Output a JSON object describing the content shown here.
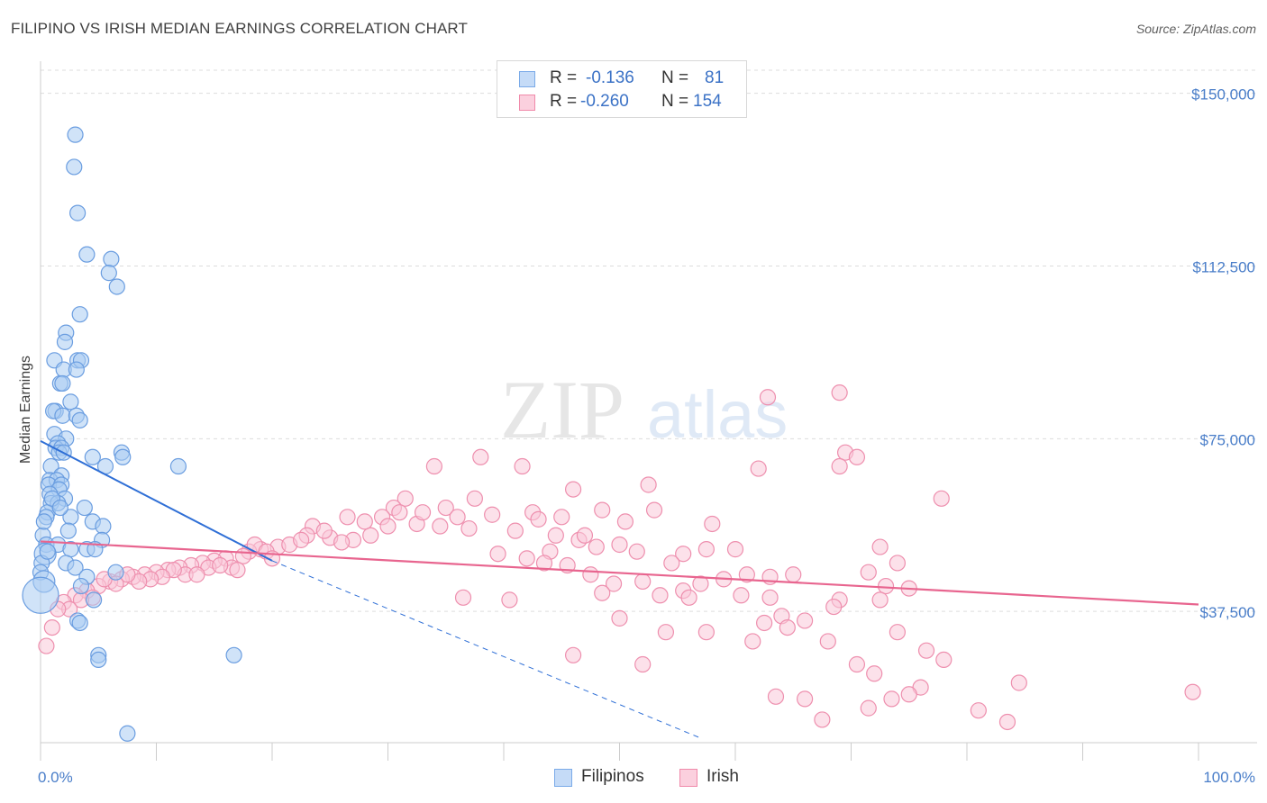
{
  "title": "FILIPINO VS IRISH MEDIAN EARNINGS CORRELATION CHART",
  "source": "Source: ZipAtlas.com",
  "watermark": {
    "zip": "ZIP",
    "atlas": "atlas"
  },
  "legend": {
    "rows": [
      {
        "r_label": "R =",
        "r_value": "-0.136",
        "n_label": "N =",
        "n_value": "81",
        "color": "#7aaae8",
        "fill": "#c5dbf7"
      },
      {
        "r_label": "R =",
        "r_value": "-0.260",
        "n_label": "N =",
        "n_value": "154",
        "color": "#f08aaa",
        "fill": "#fbd0de"
      }
    ],
    "series_names": [
      "Filipinos",
      "Irish"
    ]
  },
  "colors": {
    "blue_stroke": "#6a9de0",
    "blue_fill": "#aaccf3",
    "blue_line": "#2f6fd6",
    "pink_stroke": "#ee8fae",
    "pink_fill": "#f9c9d8",
    "pink_line": "#e8658f",
    "tick_text": "#4a7ec9",
    "grid": "#dddddd"
  },
  "chart_data": {
    "type": "scatter",
    "title": "FILIPINO VS IRISH MEDIAN EARNINGS CORRELATION CHART",
    "xlabel": "",
    "ylabel": "Median Earnings",
    "xlim": [
      0,
      100
    ],
    "ylim": [
      9000,
      155000
    ],
    "x_tick_labels": [
      "0.0%",
      "100.0%"
    ],
    "y_ticks": [
      37500,
      75000,
      112500,
      150000
    ],
    "y_tick_labels": [
      "$37,500",
      "$75,000",
      "$112,500",
      "$150,000"
    ],
    "series": [
      {
        "name": "Filipinos",
        "R": -0.136,
        "N": 81,
        "trend": {
          "x": [
            0,
            20
          ],
          "y": [
            74500,
            48500
          ],
          "dashed_to": [
            57,
            10000
          ]
        },
        "points": [
          [
            3.0,
            141000
          ],
          [
            2.9,
            134000
          ],
          [
            3.2,
            124000
          ],
          [
            4.0,
            115000
          ],
          [
            6.1,
            114000
          ],
          [
            5.9,
            111000
          ],
          [
            6.6,
            108000
          ],
          [
            3.4,
            102000
          ],
          [
            2.2,
            98000
          ],
          [
            2.1,
            96000
          ],
          [
            1.2,
            92000
          ],
          [
            3.2,
            92000
          ],
          [
            3.5,
            92000
          ],
          [
            2.0,
            90000
          ],
          [
            3.1,
            90000
          ],
          [
            1.7,
            87000
          ],
          [
            1.9,
            87000
          ],
          [
            2.6,
            83000
          ],
          [
            1.3,
            81000
          ],
          [
            1.1,
            81000
          ],
          [
            1.9,
            80000
          ],
          [
            3.1,
            80000
          ],
          [
            3.4,
            79000
          ],
          [
            1.2,
            76000
          ],
          [
            2.2,
            75000
          ],
          [
            1.5,
            74000
          ],
          [
            1.3,
            73000
          ],
          [
            1.8,
            73000
          ],
          [
            1.6,
            72000
          ],
          [
            2.0,
            72000
          ],
          [
            7.0,
            72000
          ],
          [
            7.1,
            71000
          ],
          [
            4.5,
            71000
          ],
          [
            0.9,
            69000
          ],
          [
            5.6,
            69000
          ],
          [
            11.9,
            69000
          ],
          [
            1.8,
            67000
          ],
          [
            0.8,
            66000
          ],
          [
            1.4,
            66000
          ],
          [
            0.7,
            65000
          ],
          [
            1.8,
            65000
          ],
          [
            1.6,
            64000
          ],
          [
            0.8,
            63000
          ],
          [
            2.1,
            62000
          ],
          [
            0.9,
            61000
          ],
          [
            1.5,
            61000
          ],
          [
            3.8,
            60000
          ],
          [
            0.6,
            59000
          ],
          [
            0.5,
            58000
          ],
          [
            2.6,
            58000
          ],
          [
            4.5,
            57000
          ],
          [
            5.4,
            56000
          ],
          [
            0.2,
            54000
          ],
          [
            5.3,
            53000
          ],
          [
            0.5,
            52000
          ],
          [
            1.5,
            52000
          ],
          [
            2.6,
            51000
          ],
          [
            4.0,
            51000
          ],
          [
            4.7,
            51000
          ],
          [
            0.4,
            50000
          ],
          [
            0.1,
            48000
          ],
          [
            2.2,
            48000
          ],
          [
            3.0,
            47000
          ],
          [
            6.5,
            46000
          ],
          [
            0.0,
            46000
          ],
          [
            4.0,
            45000
          ],
          [
            0.3,
            44000
          ],
          [
            3.5,
            43000
          ],
          [
            0.0,
            41000
          ],
          [
            4.6,
            40000
          ],
          [
            3.2,
            35500
          ],
          [
            3.4,
            35000
          ],
          [
            5.0,
            28000
          ],
          [
            16.7,
            28000
          ],
          [
            5.0,
            27000
          ],
          [
            7.5,
            11000
          ],
          [
            0.6,
            50500
          ],
          [
            1.0,
            62000
          ],
          [
            2.4,
            55000
          ],
          [
            0.3,
            57000
          ],
          [
            1.7,
            60000
          ]
        ]
      },
      {
        "name": "Irish",
        "R": -0.26,
        "N": 154,
        "trend": {
          "x": [
            0,
            100
          ],
          "y": [
            52700,
            39000
          ]
        },
        "points": [
          [
            62.8,
            84000
          ],
          [
            69.0,
            85000
          ],
          [
            69.5,
            72000
          ],
          [
            70.5,
            71000
          ],
          [
            69.0,
            69000
          ],
          [
            62.0,
            68500
          ],
          [
            38.0,
            71000
          ],
          [
            41.6,
            69000
          ],
          [
            34.0,
            69000
          ],
          [
            52.5,
            65000
          ],
          [
            46.0,
            64000
          ],
          [
            77.8,
            62000
          ],
          [
            31.5,
            62000
          ],
          [
            30.5,
            60000
          ],
          [
            35.0,
            60000
          ],
          [
            48.5,
            59500
          ],
          [
            53.0,
            59500
          ],
          [
            42.5,
            59000
          ],
          [
            39.0,
            58500
          ],
          [
            45.0,
            58000
          ],
          [
            26.5,
            58000
          ],
          [
            29.5,
            58000
          ],
          [
            23.5,
            56000
          ],
          [
            37.0,
            55500
          ],
          [
            41.0,
            55000
          ],
          [
            43.0,
            57500
          ],
          [
            50.5,
            57000
          ],
          [
            58.0,
            56500
          ],
          [
            46.5,
            53000
          ],
          [
            48.0,
            51500
          ],
          [
            44.0,
            50500
          ],
          [
            50.0,
            52000
          ],
          [
            51.5,
            50500
          ],
          [
            55.5,
            50000
          ],
          [
            57.5,
            51000
          ],
          [
            60.0,
            51000
          ],
          [
            72.5,
            51500
          ],
          [
            74.0,
            48000
          ],
          [
            39.5,
            50000
          ],
          [
            42.0,
            49000
          ],
          [
            43.5,
            48000
          ],
          [
            45.5,
            47500
          ],
          [
            54.5,
            48000
          ],
          [
            47.5,
            45500
          ],
          [
            49.5,
            43500
          ],
          [
            52.0,
            44000
          ],
          [
            55.5,
            42000
          ],
          [
            57.0,
            43500
          ],
          [
            59.0,
            44500
          ],
          [
            61.0,
            45500
          ],
          [
            63.0,
            45000
          ],
          [
            65.0,
            45500
          ],
          [
            71.5,
            46000
          ],
          [
            73.0,
            43000
          ],
          [
            75.0,
            42500
          ],
          [
            69.0,
            40000
          ],
          [
            60.5,
            41000
          ],
          [
            63.0,
            40500
          ],
          [
            64.0,
            36500
          ],
          [
            68.5,
            38500
          ],
          [
            72.5,
            40000
          ],
          [
            36.5,
            40500
          ],
          [
            40.5,
            40000
          ],
          [
            48.5,
            41500
          ],
          [
            53.5,
            41000
          ],
          [
            56.0,
            40500
          ],
          [
            57.5,
            33000
          ],
          [
            61.5,
            31000
          ],
          [
            62.5,
            35000
          ],
          [
            64.5,
            34000
          ],
          [
            66.0,
            35500
          ],
          [
            68.0,
            31000
          ],
          [
            70.5,
            26000
          ],
          [
            72.0,
            24000
          ],
          [
            74.0,
            33000
          ],
          [
            76.5,
            29000
          ],
          [
            78.0,
            27000
          ],
          [
            76.0,
            21000
          ],
          [
            73.5,
            18500
          ],
          [
            66.0,
            18500
          ],
          [
            63.5,
            19000
          ],
          [
            71.5,
            16500
          ],
          [
            75.0,
            19500
          ],
          [
            84.5,
            22000
          ],
          [
            81.0,
            16000
          ],
          [
            83.5,
            13500
          ],
          [
            67.5,
            14000
          ],
          [
            99.5,
            20000
          ],
          [
            46.0,
            28000
          ],
          [
            52.0,
            26000
          ],
          [
            50.0,
            36000
          ],
          [
            54.0,
            33000
          ],
          [
            23.0,
            54000
          ],
          [
            25.0,
            53500
          ],
          [
            27.0,
            53000
          ],
          [
            28.5,
            54000
          ],
          [
            30.0,
            56000
          ],
          [
            32.5,
            56500
          ],
          [
            34.5,
            56000
          ],
          [
            20.5,
            51500
          ],
          [
            19.0,
            51000
          ],
          [
            18.0,
            50500
          ],
          [
            17.5,
            49500
          ],
          [
            16.0,
            49000
          ],
          [
            15.0,
            48500
          ],
          [
            14.0,
            48000
          ],
          [
            13.0,
            47500
          ],
          [
            12.0,
            47000
          ],
          [
            11.0,
            46500
          ],
          [
            10.0,
            46000
          ],
          [
            9.0,
            45500
          ],
          [
            8.0,
            45000
          ],
          [
            7.0,
            44500
          ],
          [
            6.0,
            44000
          ],
          [
            5.0,
            43000
          ],
          [
            4.0,
            42000
          ],
          [
            3.0,
            41000
          ],
          [
            2.0,
            39500
          ],
          [
            1.0,
            34000
          ],
          [
            0.5,
            30000
          ],
          [
            21.5,
            52000
          ],
          [
            22.5,
            53000
          ],
          [
            24.5,
            55000
          ],
          [
            26.0,
            52500
          ],
          [
            18.5,
            52000
          ],
          [
            16.5,
            47000
          ],
          [
            14.5,
            47000
          ],
          [
            12.5,
            45500
          ],
          [
            11.5,
            46500
          ],
          [
            10.5,
            45000
          ],
          [
            9.5,
            44500
          ],
          [
            8.5,
            44000
          ],
          [
            7.5,
            45500
          ],
          [
            6.5,
            43500
          ],
          [
            5.5,
            44500
          ],
          [
            4.5,
            40500
          ],
          [
            3.5,
            40000
          ],
          [
            2.5,
            38000
          ],
          [
            1.5,
            38000
          ],
          [
            13.5,
            45500
          ],
          [
            15.5,
            47500
          ],
          [
            17.0,
            46500
          ],
          [
            19.5,
            50500
          ],
          [
            20.0,
            49000
          ],
          [
            28.0,
            57000
          ],
          [
            31.0,
            59000
          ],
          [
            33.0,
            59000
          ],
          [
            36.0,
            58000
          ],
          [
            37.5,
            62000
          ],
          [
            44.5,
            54000
          ],
          [
            47.0,
            54000
          ]
        ]
      }
    ]
  }
}
